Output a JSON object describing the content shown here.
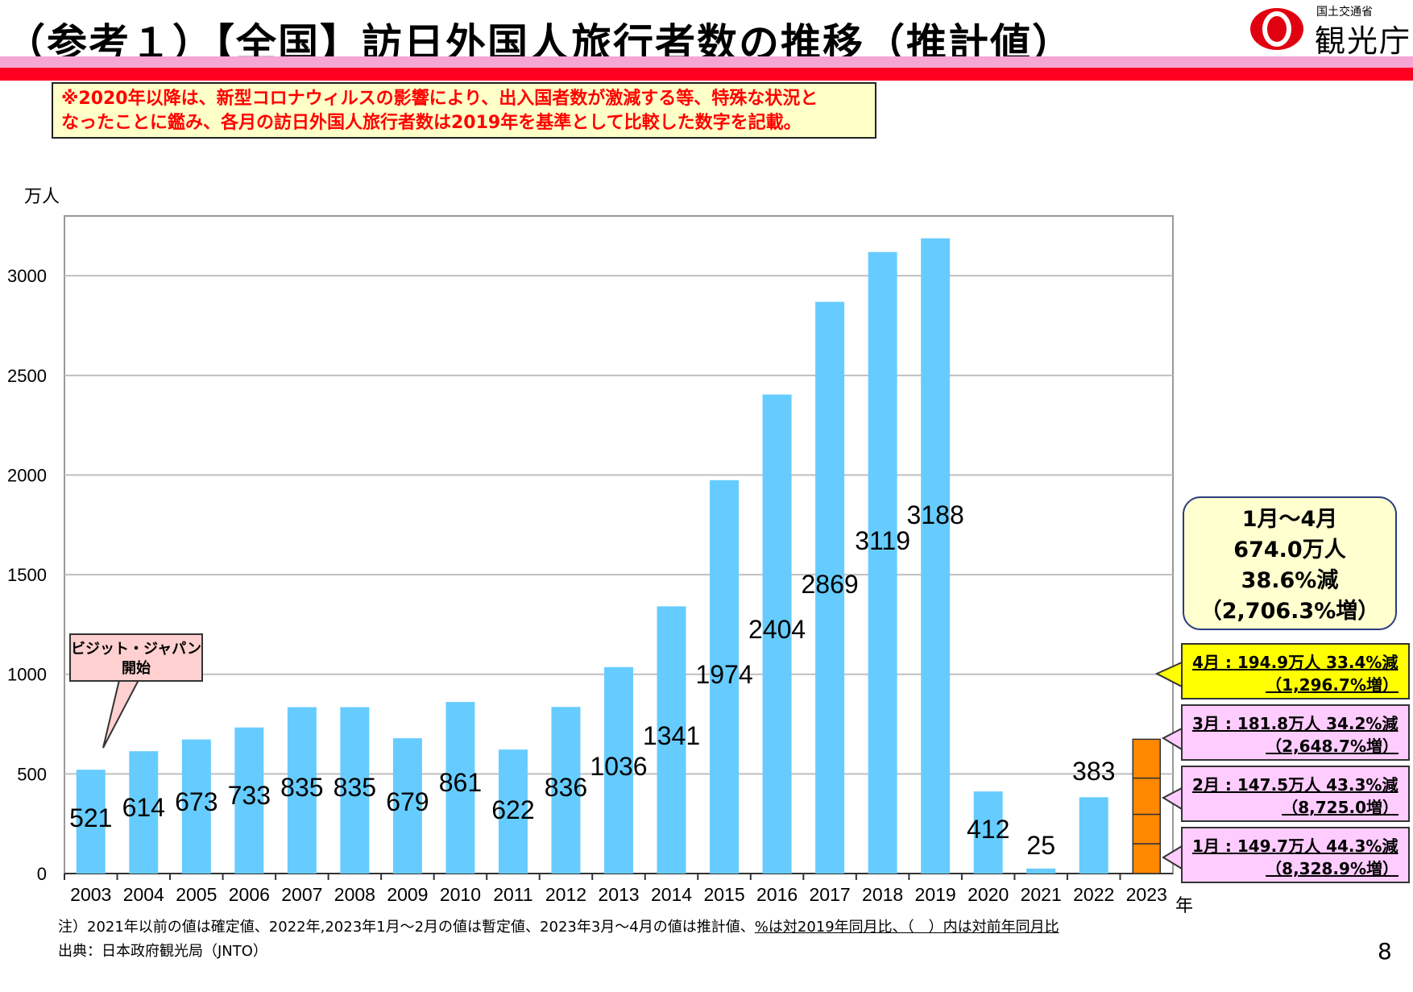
{
  "header": {
    "title": "（参考１）【全国】訪日外国人旅行者数の推移（推計値）",
    "logo_ministry": "国土交通省",
    "logo_agency": "観光庁"
  },
  "notice": {
    "line1": "※2020年以降は、新型コロナウィルスの影響により、出入国者数が激減する等、特殊な状況と",
    "line2": "なったことに鑑み、各月の訪日外国人旅行者数は2019年を基準として比較した数字を記載。"
  },
  "chart_data": {
    "type": "bar",
    "ylabel": "万人",
    "xlabel": "年",
    "ylim": [
      0,
      3300
    ],
    "yticks": [
      0,
      500,
      1000,
      1500,
      2000,
      2500,
      3000
    ],
    "grid": true,
    "categories": [
      "2003",
      "2004",
      "2005",
      "2006",
      "2007",
      "2008",
      "2009",
      "2010",
      "2011",
      "2012",
      "2013",
      "2014",
      "2015",
      "2016",
      "2017",
      "2018",
      "2019",
      "2020",
      "2021",
      "2022",
      "2023"
    ],
    "values": [
      521,
      614,
      673,
      733,
      835,
      835,
      679,
      861,
      622,
      836,
      1036,
      1341,
      1974,
      2404,
      2869,
      3119,
      3188,
      412,
      25,
      383,
      null
    ],
    "data_labels": [
      "521",
      "614",
      "673",
      "733",
      "835",
      "835",
      "679",
      "861",
      "622",
      "836",
      "1036",
      "1341",
      "1974",
      "2404",
      "2869",
      "3119",
      "3188",
      "412",
      "25",
      "383",
      ""
    ],
    "stacked_2023": {
      "segments": [
        {
          "label": "1月",
          "value": 149.7
        },
        {
          "label": "2月",
          "value": 147.5
        },
        {
          "label": "3月",
          "value": 181.8
        },
        {
          "label": "4月",
          "value": 194.9
        }
      ],
      "total": 674.0
    },
    "colors": {
      "bar": "#66ccff",
      "bar_2023": "#ff8800",
      "grid": "#bfbfbf"
    }
  },
  "annotations": {
    "visit_japan_line1": "ビジット・ジャパン",
    "visit_japan_line2": "開始",
    "summary_line1": "1月～4月",
    "summary_line2": "674.0万人",
    "summary_line3": "38.6%減",
    "summary_line4": "（2,706.3%増）",
    "callouts": [
      {
        "line1": "4月 : 194.9万人 33.4%減",
        "line2": "（1,296.7%増）",
        "color": "#ffff00"
      },
      {
        "line1": "3月 : 181.8万人 34.2%減",
        "line2": "（2,648.7%増）",
        "color": "#ffccff"
      },
      {
        "line1": "2月 : 147.5万人 43.3%減",
        "line2": "（8,725.0増）",
        "color": "#ffccff"
      },
      {
        "line1": "1月 : 149.7万人 44.3%減",
        "line2": "（8,328.9%増）",
        "color": "#ffccff"
      }
    ]
  },
  "footer": {
    "note_prefix": "注）2021年以前の値は確定値、2022年,2023年1月～2月の値は暫定値、2023年3月～4月の値は推計値、",
    "note_underlined": "%は対2019年同月比、（　）内は対前年同月比",
    "source": "出典：日本政府観光局（JNTO）",
    "page_number": "8"
  }
}
